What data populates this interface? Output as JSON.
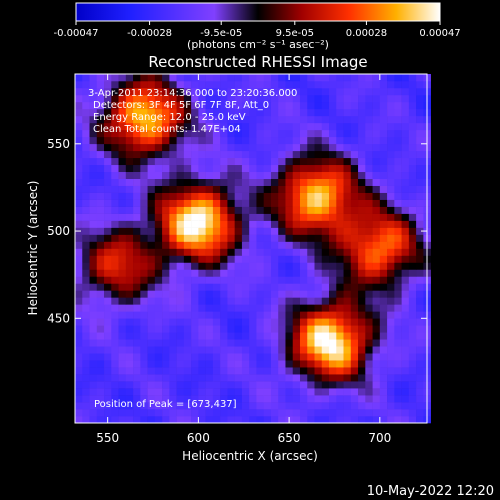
{
  "chart_data": {
    "type": "heatmap",
    "title": "Reconstructed RHESSI Image",
    "xlabel": "Heliocentric X (arcsec)",
    "ylabel": "Heliocentric Y (arcsec)",
    "xlim": [
      532,
      726
    ],
    "ylim": [
      390,
      590
    ],
    "x_ticks": [
      550,
      600,
      650,
      700
    ],
    "y_ticks": [
      450,
      500,
      550
    ],
    "colorbar": {
      "label": "(photons cm⁻² s⁻¹ asec⁻²)",
      "vmin": -0.00047,
      "vmax": 0.00047,
      "tick_values": [
        -0.00047,
        -0.00028,
        -9.5e-05,
        9.5e-05,
        0.00028,
        0.00047
      ],
      "tick_labels": [
        "-0.00047",
        "-0.00028",
        "-9.5e-05",
        "9.5e-05",
        "0.00028",
        "0.00047"
      ]
    },
    "annotations": [
      "3-Apr-2011 23:14:36.000 to 23:20:36.000",
      "Detectors: 3F 4F 5F 6F 7F 8F, Att_0",
      "Energy Range: 12.0 - 25.0 keV",
      "Clean  Total counts: 1.47E+04"
    ],
    "peak_label": "Position of Peak = [673,437]",
    "peak": [
      673,
      437
    ],
    "bright_regions": [
      {
        "x": 570,
        "y": 565,
        "value": 0.0004
      },
      {
        "x": 600,
        "y": 505,
        "value": 0.00047
      },
      {
        "x": 665,
        "y": 520,
        "value": 0.0004
      },
      {
        "x": 700,
        "y": 490,
        "value": 0.0003
      },
      {
        "x": 673,
        "y": 437,
        "value": 0.00047
      },
      {
        "x": 555,
        "y": 480,
        "value": 0.00018
      }
    ],
    "grid": false
  },
  "footer": {
    "date": "10-May-2022 12:20"
  }
}
